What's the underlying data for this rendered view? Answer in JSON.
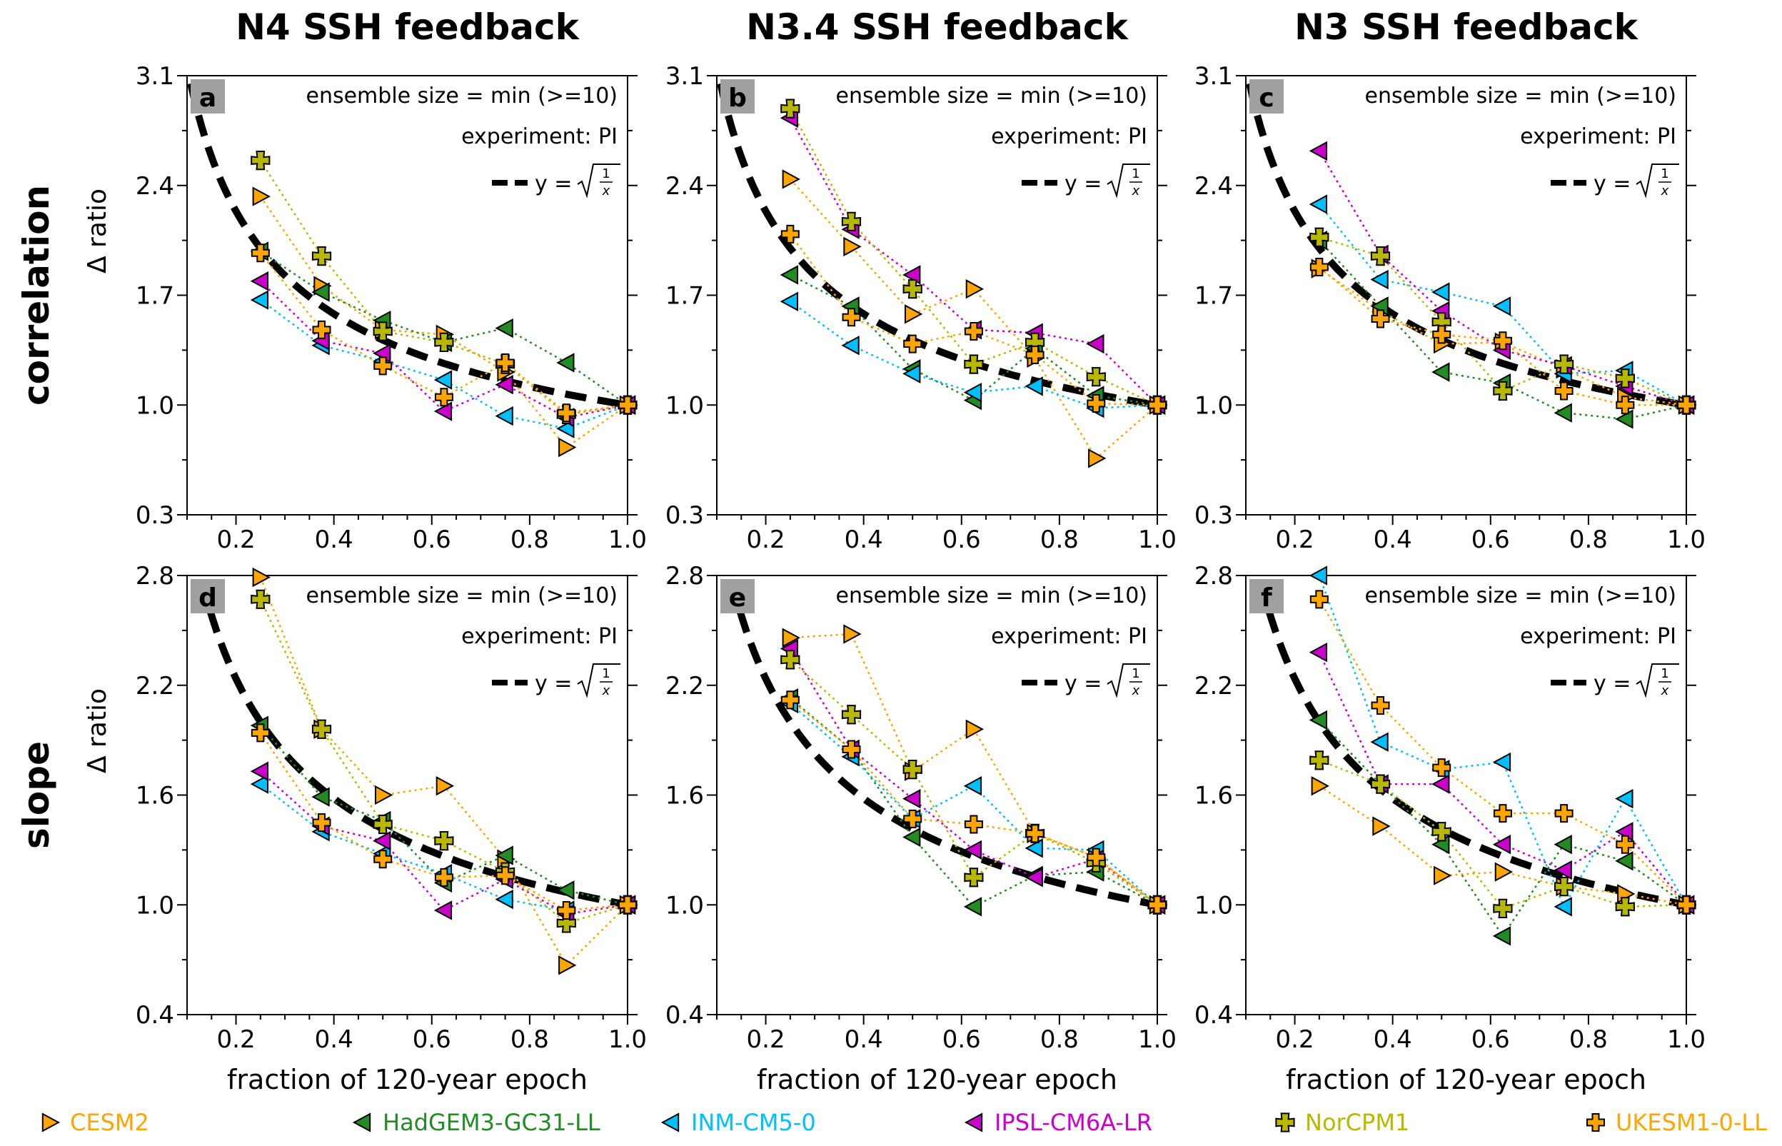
{
  "figure": {
    "column_titles": [
      "N4 SSH feedback",
      "N3.4 SSH feedback",
      "N3 SSH feedback"
    ],
    "row_labels": [
      "correlation",
      "slope"
    ],
    "legend_position": "bottom"
  },
  "annotations": {
    "ensemble": "ensemble size = min (>=10)",
    "experiment": "experiment: PI",
    "curve_prefix": "y = ",
    "curve_formula": "√(1/x)"
  },
  "models": [
    {
      "name": "CESM2",
      "color": "#FFA500",
      "marker": "triangle-right"
    },
    {
      "name": "HadGEM3-GC31-LL",
      "color": "#228B22",
      "marker": "triangle-left"
    },
    {
      "name": "INM-CM5-0",
      "color": "#00BFFF",
      "marker": "triangle-left"
    },
    {
      "name": "IPSL-CM6A-LR",
      "color": "#CC00CC",
      "marker": "triangle-left"
    },
    {
      "name": "NorCPM1",
      "color": "#B8B800",
      "marker": "x-filled"
    },
    {
      "name": "UKESM1-0-LL",
      "color": "#FFA500",
      "marker": "plus-filled"
    }
  ],
  "chart_data": [
    {
      "type": "line",
      "panel": "a",
      "title": "N4 SSH feedback",
      "xlabel": "fraction of 120-year epoch",
      "ylabel": "Δ ratio",
      "xlim": [
        0.1,
        1.0
      ],
      "ylim": [
        0.3,
        3.1
      ],
      "xticks": [
        "0.2",
        "0.4",
        "0.6",
        "0.8",
        "1.0"
      ],
      "yticks": [
        "0.3",
        "1.0",
        "1.7",
        "2.4",
        "3.1"
      ],
      "x": [
        0.25,
        0.375,
        0.5,
        0.625,
        0.75,
        0.875,
        1.0
      ],
      "series": [
        {
          "name": "CESM2",
          "values": [
            2.33,
            1.76,
            1.48,
            1.45,
            1.21,
            0.73,
            1.0
          ]
        },
        {
          "name": "HadGEM3-GC31-LL",
          "values": [
            1.98,
            1.72,
            1.54,
            1.4,
            1.49,
            1.27,
            1.0
          ]
        },
        {
          "name": "INM-CM5-0",
          "values": [
            1.67,
            1.38,
            1.28,
            1.16,
            0.93,
            0.85,
            1.0
          ]
        },
        {
          "name": "IPSL-CM6A-LR",
          "values": [
            1.79,
            1.41,
            1.33,
            0.96,
            1.13,
            0.92,
            1.0
          ]
        },
        {
          "name": "NorCPM1",
          "values": [
            2.56,
            1.95,
            1.47,
            1.4,
            1.26,
            0.94,
            1.0
          ]
        },
        {
          "name": "UKESM1-0-LL",
          "values": [
            1.97,
            1.48,
            1.25,
            1.05,
            1.27,
            0.95,
            1.0
          ]
        }
      ]
    },
    {
      "type": "line",
      "panel": "b",
      "title": "N3.4 SSH feedback",
      "xlabel": "fraction of 120-year epoch",
      "ylabel": "Δ ratio",
      "xlim": [
        0.1,
        1.0
      ],
      "ylim": [
        0.3,
        3.1
      ],
      "xticks": [
        "0.2",
        "0.4",
        "0.6",
        "0.8",
        "1.0"
      ],
      "yticks": [
        "0.3",
        "1.0",
        "1.7",
        "2.4",
        "3.1"
      ],
      "x": [
        0.25,
        0.375,
        0.5,
        0.625,
        0.75,
        0.875,
        1.0
      ],
      "series": [
        {
          "name": "CESM2",
          "values": [
            2.44,
            2.01,
            1.58,
            1.74,
            1.3,
            0.66,
            1.0
          ]
        },
        {
          "name": "HadGEM3-GC31-LL",
          "values": [
            1.83,
            1.63,
            1.23,
            1.03,
            1.36,
            1.06,
            1.0
          ]
        },
        {
          "name": "INM-CM5-0",
          "values": [
            1.66,
            1.38,
            1.2,
            1.08,
            1.12,
            0.98,
            1.0
          ]
        },
        {
          "name": "IPSL-CM6A-LR",
          "values": [
            2.83,
            2.12,
            1.83,
            1.48,
            1.46,
            1.39,
            1.0
          ]
        },
        {
          "name": "NorCPM1",
          "values": [
            2.89,
            2.17,
            1.74,
            1.26,
            1.4,
            1.18,
            1.0
          ]
        },
        {
          "name": "UKESM1-0-LL",
          "values": [
            2.09,
            1.56,
            1.39,
            1.47,
            1.32,
            1.01,
            1.0
          ]
        }
      ]
    },
    {
      "type": "line",
      "panel": "c",
      "title": "N3 SSH feedback",
      "xlabel": "fraction of 120-year epoch",
      "ylabel": "Δ ratio",
      "xlim": [
        0.1,
        1.0
      ],
      "ylim": [
        0.3,
        3.1
      ],
      "xticks": [
        "0.2",
        "0.4",
        "0.6",
        "0.8",
        "1.0"
      ],
      "yticks": [
        "0.3",
        "1.0",
        "1.7",
        "2.4",
        "3.1"
      ],
      "x": [
        0.25,
        0.375,
        0.5,
        0.625,
        0.75,
        0.875,
        1.0
      ],
      "series": [
        {
          "name": "CESM2",
          "values": [
            1.87,
            1.6,
            1.39,
            1.4,
            1.23,
            1.05,
            1.0
          ]
        },
        {
          "name": "HadGEM3-GC31-LL",
          "values": [
            2.05,
            1.63,
            1.21,
            1.14,
            0.95,
            0.91,
            1.0
          ]
        },
        {
          "name": "INM-CM5-0",
          "values": [
            2.28,
            1.8,
            1.72,
            1.63,
            1.2,
            1.22,
            1.0
          ]
        },
        {
          "name": "IPSL-CM6A-LR",
          "values": [
            2.62,
            1.96,
            1.6,
            1.35,
            1.25,
            1.12,
            1.0
          ]
        },
        {
          "name": "NorCPM1",
          "values": [
            2.07,
            1.95,
            1.53,
            1.09,
            1.26,
            1.17,
            1.0
          ]
        },
        {
          "name": "UKESM1-0-LL",
          "values": [
            1.88,
            1.55,
            1.45,
            1.41,
            1.09,
            1.0,
            1.0
          ]
        }
      ]
    },
    {
      "type": "line",
      "panel": "d",
      "title": "",
      "xlabel": "fraction of 120-year epoch",
      "ylabel": "Δ ratio",
      "xlim": [
        0.1,
        1.0
      ],
      "ylim": [
        0.4,
        2.8
      ],
      "xticks": [
        "0.2",
        "0.4",
        "0.6",
        "0.8",
        "1.0"
      ],
      "yticks": [
        "0.4",
        "1.0",
        "1.6",
        "2.2",
        "2.8"
      ],
      "x": [
        0.25,
        0.375,
        0.5,
        0.625,
        0.75,
        0.875,
        1.0
      ],
      "series": [
        {
          "name": "CESM2",
          "values": [
            2.79,
            1.96,
            1.6,
            1.65,
            1.25,
            0.67,
            1.0
          ]
        },
        {
          "name": "HadGEM3-GC31-LL",
          "values": [
            1.98,
            1.59,
            1.46,
            1.12,
            1.27,
            1.08,
            1.0
          ]
        },
        {
          "name": "INM-CM5-0",
          "values": [
            1.66,
            1.4,
            1.28,
            1.17,
            1.03,
            0.97,
            1.0
          ]
        },
        {
          "name": "IPSL-CM6A-LR",
          "values": [
            1.73,
            1.43,
            1.35,
            0.97,
            1.14,
            0.95,
            1.0
          ]
        },
        {
          "name": "NorCPM1",
          "values": [
            2.67,
            1.96,
            1.44,
            1.35,
            1.18,
            0.9,
            1.0
          ]
        },
        {
          "name": "UKESM1-0-LL",
          "values": [
            1.94,
            1.45,
            1.25,
            1.15,
            1.16,
            0.97,
            1.0
          ]
        }
      ]
    },
    {
      "type": "line",
      "panel": "e",
      "title": "",
      "xlabel": "fraction of 120-year epoch",
      "ylabel": "Δ ratio",
      "xlim": [
        0.1,
        1.0
      ],
      "ylim": [
        0.4,
        2.8
      ],
      "xticks": [
        "0.2",
        "0.4",
        "0.6",
        "0.8",
        "1.0"
      ],
      "yticks": [
        "0.4",
        "1.0",
        "1.6",
        "2.2",
        "2.8"
      ],
      "x": [
        0.25,
        0.375,
        0.5,
        0.625,
        0.75,
        0.875,
        1.0
      ],
      "series": [
        {
          "name": "CESM2",
          "values": [
            2.46,
            2.48,
            1.73,
            1.96,
            1.39,
            1.26,
            1.0
          ]
        },
        {
          "name": "HadGEM3-GC31-LL",
          "values": [
            2.13,
            1.85,
            1.37,
            0.99,
            1.16,
            1.18,
            1.0
          ]
        },
        {
          "name": "INM-CM5-0",
          "values": [
            2.1,
            1.81,
            1.47,
            1.65,
            1.31,
            1.3,
            1.0
          ]
        },
        {
          "name": "IPSL-CM6A-LR",
          "values": [
            2.4,
            1.85,
            1.58,
            1.3,
            1.15,
            1.25,
            1.0
          ]
        },
        {
          "name": "NorCPM1",
          "values": [
            2.34,
            2.04,
            1.74,
            1.15,
            1.39,
            1.23,
            1.0
          ]
        },
        {
          "name": "UKESM1-0-LL",
          "values": [
            2.12,
            1.85,
            1.47,
            1.44,
            1.39,
            1.26,
            1.0
          ]
        }
      ]
    },
    {
      "type": "line",
      "panel": "f",
      "title": "",
      "xlabel": "fraction of 120-year epoch",
      "ylabel": "Δ ratio",
      "xlim": [
        0.1,
        1.0
      ],
      "ylim": [
        0.4,
        2.8
      ],
      "xticks": [
        "0.2",
        "0.4",
        "0.6",
        "0.8",
        "1.0"
      ],
      "yticks": [
        "0.4",
        "1.0",
        "1.6",
        "2.2",
        "2.8"
      ],
      "x": [
        0.25,
        0.375,
        0.5,
        0.625,
        0.75,
        0.875,
        1.0
      ],
      "series": [
        {
          "name": "CESM2",
          "values": [
            1.65,
            1.43,
            1.16,
            1.18,
            1.1,
            1.06,
            1.0
          ]
        },
        {
          "name": "HadGEM3-GC31-LL",
          "values": [
            2.01,
            1.66,
            1.33,
            0.83,
            1.33,
            1.24,
            1.0
          ]
        },
        {
          "name": "INM-CM5-0",
          "values": [
            2.8,
            1.89,
            1.74,
            1.78,
            0.99,
            1.58,
            1.0
          ]
        },
        {
          "name": "IPSL-CM6A-LR",
          "values": [
            2.38,
            1.66,
            1.66,
            1.33,
            1.19,
            1.4,
            1.0
          ]
        },
        {
          "name": "NorCPM1",
          "values": [
            1.79,
            1.66,
            1.4,
            0.98,
            1.1,
            0.99,
            1.0
          ]
        },
        {
          "name": "UKESM1-0-LL",
          "values": [
            2.67,
            2.09,
            1.75,
            1.5,
            1.5,
            1.33,
            1.0
          ]
        }
      ]
    }
  ]
}
